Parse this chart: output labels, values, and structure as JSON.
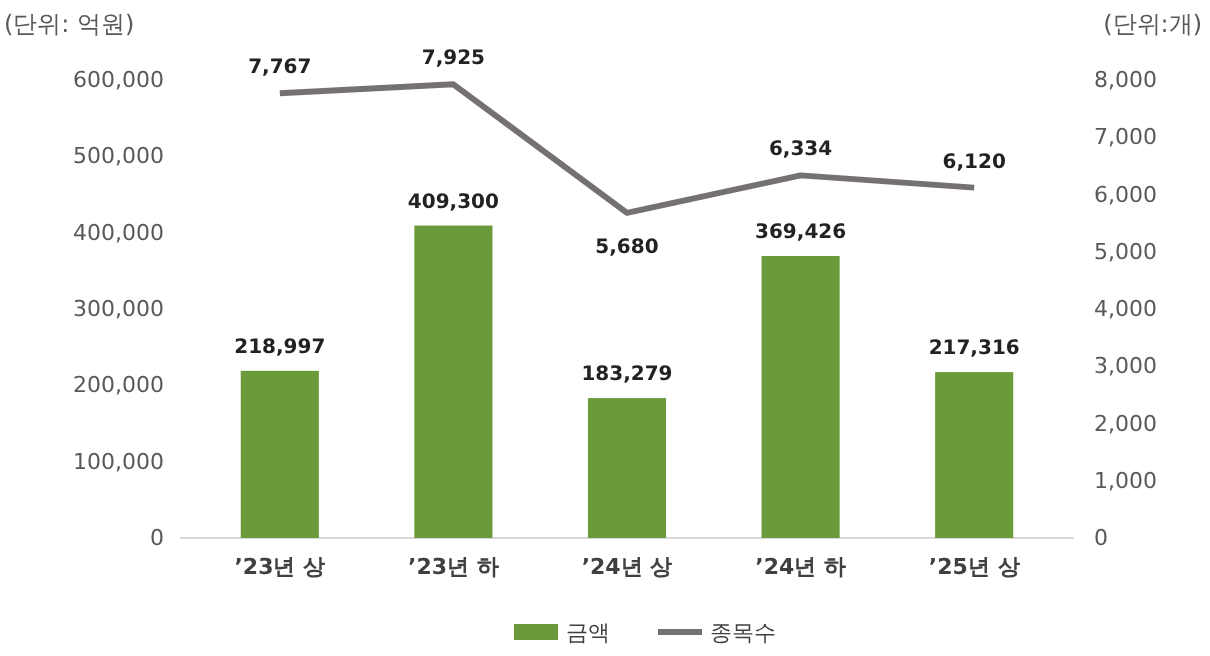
{
  "chart_data": {
    "type": "bar",
    "categories": [
      "’23년 상",
      "’23년 하",
      "’24년 상",
      "’24년 하",
      "’25년 상"
    ],
    "series": [
      {
        "name": "금액",
        "color": "#6a9a3a",
        "values": [
          218997,
          409300,
          183279,
          369426,
          217316
        ],
        "value_labels": [
          "218,997",
          "409,300",
          "183,279",
          "369,426",
          "217,316"
        ]
      },
      {
        "name": "종목수",
        "type": "line",
        "axis": "y2",
        "color": "#767171",
        "values": [
          7767,
          7925,
          5680,
          6334,
          6120
        ],
        "value_labels": [
          "7,767",
          "7,925",
          "5,680",
          "6,334",
          "6,120"
        ]
      }
    ],
    "ylabel": "(단위: 억원)",
    "y2label": "(단위:개)",
    "ylim": [
      0,
      600000
    ],
    "yticks": [
      {
        "value": 0,
        "label": "0"
      },
      {
        "value": 100000,
        "label": "100,000"
      },
      {
        "value": 200000,
        "label": "200,000"
      },
      {
        "value": 300000,
        "label": "300,000"
      },
      {
        "value": 400000,
        "label": "400,000"
      },
      {
        "value": 500000,
        "label": "500,000"
      },
      {
        "value": 600000,
        "label": "600,000"
      }
    ],
    "y2lim": [
      0,
      8000
    ],
    "y2ticks": [
      {
        "value": 0,
        "label": "0"
      },
      {
        "value": 1000,
        "label": "1,000"
      },
      {
        "value": 2000,
        "label": "2,000"
      },
      {
        "value": 3000,
        "label": "3,000"
      },
      {
        "value": 4000,
        "label": "4,000"
      },
      {
        "value": 5000,
        "label": "5,000"
      },
      {
        "value": 6000,
        "label": "6,000"
      },
      {
        "value": 7000,
        "label": "7,000"
      },
      {
        "value": 8000,
        "label": "8,000"
      }
    ],
    "legend": "bottom",
    "grid": false,
    "marker": "none"
  }
}
